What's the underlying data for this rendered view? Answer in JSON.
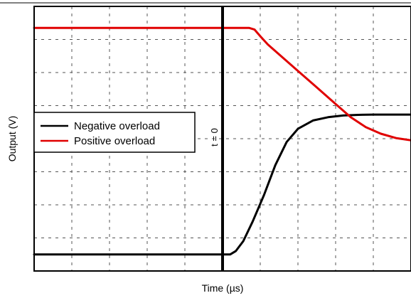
{
  "chart_data": {
    "type": "line",
    "title": "",
    "xlabel": "Time (µs)",
    "ylabel": "Output (V)",
    "xlim": [
      0,
      10
    ],
    "ylim": [
      0,
      8
    ],
    "grid": true,
    "x_ticks_shown": false,
    "y_ticks_shown": false,
    "legend_position": "center-left",
    "annotation": {
      "text": "t = 0",
      "x": 5
    },
    "series": [
      {
        "name": "Negative overload",
        "color": "#000000",
        "points": [
          [
            0,
            0.5
          ],
          [
            5.0,
            0.5
          ],
          [
            5.2,
            0.5
          ],
          [
            5.35,
            0.6
          ],
          [
            5.55,
            0.9
          ],
          [
            5.8,
            1.5
          ],
          [
            6.1,
            2.3
          ],
          [
            6.4,
            3.2
          ],
          [
            6.7,
            3.9
          ],
          [
            7.0,
            4.3
          ],
          [
            7.4,
            4.55
          ],
          [
            7.8,
            4.65
          ],
          [
            8.2,
            4.7
          ],
          [
            8.6,
            4.72
          ],
          [
            9.0,
            4.73
          ],
          [
            10,
            4.73
          ]
        ]
      },
      {
        "name": "Positive overload",
        "color": "#e00000",
        "points": [
          [
            0,
            7.35
          ],
          [
            5.0,
            7.35
          ],
          [
            5.7,
            7.35
          ],
          [
            5.85,
            7.3
          ],
          [
            6.0,
            7.1
          ],
          [
            6.2,
            6.85
          ],
          [
            6.6,
            6.45
          ],
          [
            7.0,
            6.05
          ],
          [
            7.5,
            5.55
          ],
          [
            8.0,
            5.05
          ],
          [
            8.4,
            4.65
          ],
          [
            8.8,
            4.35
          ],
          [
            9.2,
            4.15
          ],
          [
            9.6,
            4.02
          ],
          [
            10,
            3.95
          ]
        ]
      }
    ]
  }
}
